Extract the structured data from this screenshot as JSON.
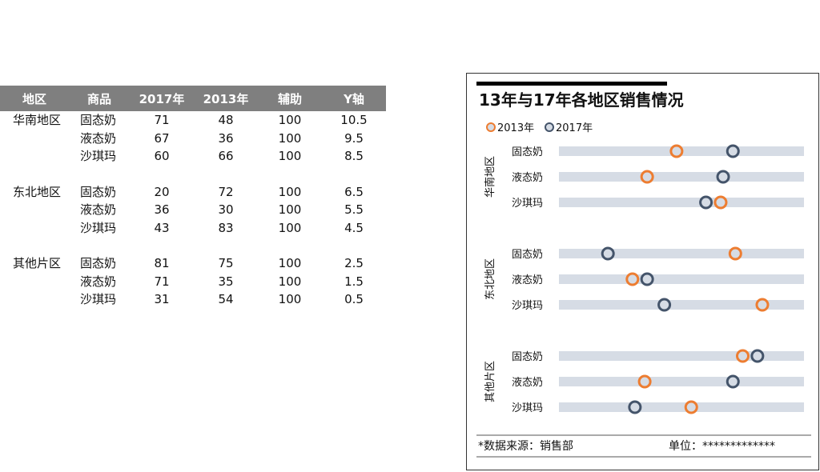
{
  "table": {
    "headers": [
      "地区",
      "商品",
      "2017年",
      "2013年",
      "辅助",
      "Y轴"
    ],
    "rows": [
      [
        "华南地区",
        "固态奶",
        "71",
        "48",
        "100",
        "10.5"
      ],
      [
        "",
        "液态奶",
        "67",
        "36",
        "100",
        "9.5"
      ],
      [
        "",
        "沙琪玛",
        "60",
        "66",
        "100",
        "8.5"
      ],
      [
        "东北地区",
        "固态奶",
        "20",
        "72",
        "100",
        "6.5"
      ],
      [
        "",
        "液态奶",
        "36",
        "30",
        "100",
        "5.5"
      ],
      [
        "",
        "沙琪玛",
        "43",
        "83",
        "100",
        "4.5"
      ],
      [
        "其他片区",
        "固态奶",
        "81",
        "75",
        "100",
        "2.5"
      ],
      [
        "",
        "液态奶",
        "71",
        "35",
        "100",
        "1.5"
      ],
      [
        "",
        "沙琪玛",
        "31",
        "54",
        "100",
        "0.5"
      ]
    ]
  },
  "chart_data": {
    "type": "scatter",
    "title": "13年与17年各地区销售情况",
    "legend": [
      "2013年",
      "2017年"
    ],
    "legend_position": "top-left",
    "groups": [
      "华南地区",
      "东北地区",
      "其他片区"
    ],
    "categories": [
      "固态奶",
      "液态奶",
      "沙琪玛"
    ],
    "xlim": [
      0,
      100
    ],
    "ylim": [
      0,
      11
    ],
    "grid": false,
    "series": [
      {
        "name": "2013年",
        "color": "#ed7d31",
        "x": [
          48,
          36,
          66,
          72,
          30,
          83,
          75,
          35,
          54
        ],
        "y": [
          10.5,
          9.5,
          8.5,
          6.5,
          5.5,
          4.5,
          2.5,
          1.5,
          0.5
        ]
      },
      {
        "name": "2017年",
        "color": "#44546a",
        "x": [
          71,
          67,
          60,
          20,
          36,
          43,
          81,
          71,
          31
        ],
        "y": [
          10.5,
          9.5,
          8.5,
          6.5,
          5.5,
          4.5,
          2.5,
          1.5,
          0.5
        ]
      }
    ],
    "track_color": "#d6dce5",
    "footer_source": "*数据来源：销售部",
    "footer_unit": "单位：*************"
  }
}
